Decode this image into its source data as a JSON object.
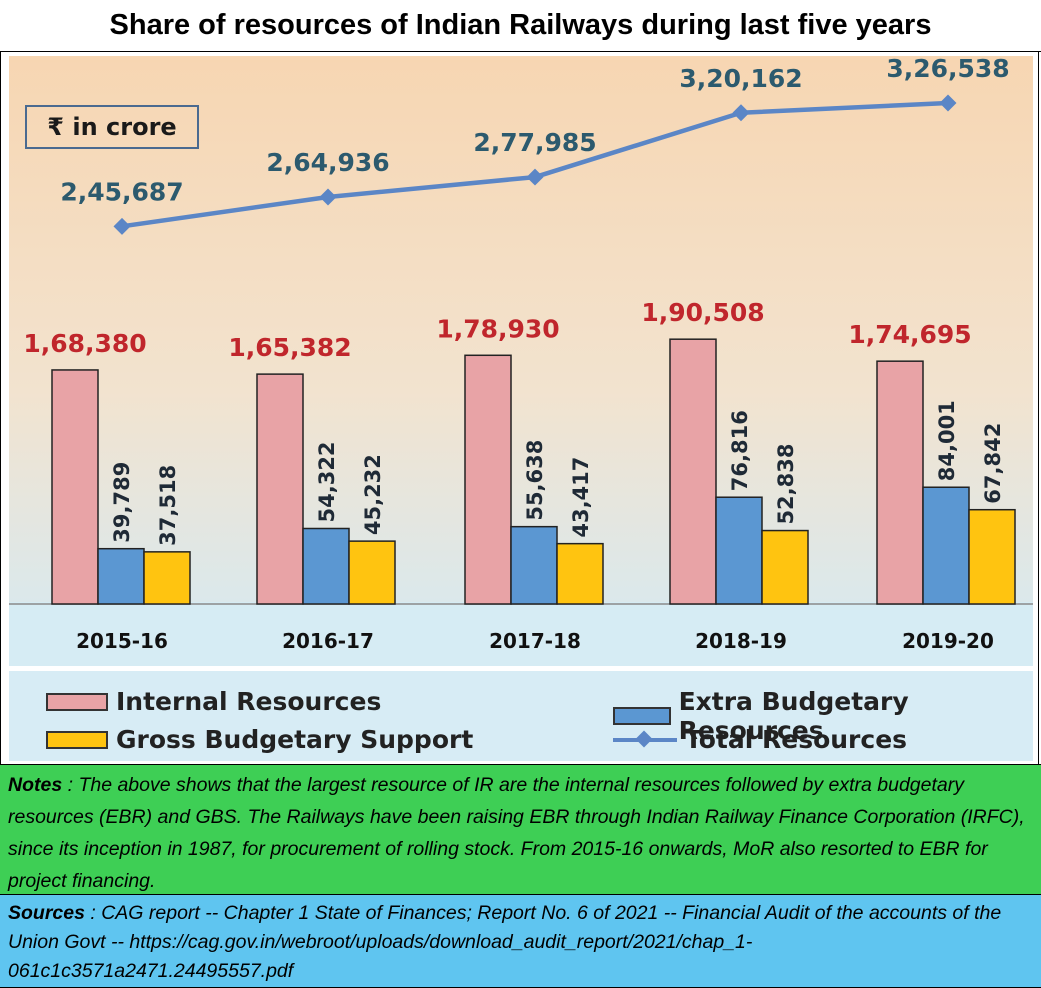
{
  "title": "Share of  resources of Indian Railways during last five years",
  "unit_label": "₹ in crore",
  "chart_data": {
    "type": "bar",
    "title": "Share of  resources of Indian Railways during last five years",
    "categories": [
      "2015-16",
      "2016-17",
      "2017-18",
      "2018-19",
      "2019-20"
    ],
    "series": [
      {
        "name": "Internal Resources",
        "type": "bar",
        "color": "#e8a3a6",
        "values": [
          168380,
          165382,
          178930,
          190508,
          174695
        ],
        "labels": [
          "1,68,380",
          "1,65,382",
          "1,78,930",
          "1,90,508",
          "1,74,695"
        ]
      },
      {
        "name": "Extra Budgetary Resources",
        "type": "bar",
        "color": "#5b97d2",
        "values": [
          39789,
          54322,
          55638,
          76816,
          84001
        ],
        "labels": [
          "39,789",
          "54,322",
          "55,638",
          "76,816",
          "84,001"
        ]
      },
      {
        "name": "Gross Budgetary Support",
        "type": "bar",
        "color": "#ffc410",
        "values": [
          37518,
          45232,
          43417,
          52838,
          67842
        ],
        "labels": [
          "37,518",
          "45,232",
          "43,417",
          "52,838",
          "67,842"
        ]
      },
      {
        "name": "Total Resources",
        "type": "line",
        "color": "#5b86c6",
        "values": [
          245687,
          264936,
          277985,
          320162,
          326538
        ],
        "labels": [
          "2,45,687",
          "2,64,936",
          "2,77,985",
          "3,20,162",
          "3,26,538"
        ]
      }
    ],
    "legend_position": "bottom",
    "grid": false
  },
  "legend": {
    "ir": "Internal Resources",
    "ebr": "Extra Budgetary Resources",
    "gbs": "Gross Budgetary Support",
    "total": "Total Resources"
  },
  "notes": {
    "label": "Notes",
    "text": " : The above shows that the largest resource of IR are the internal resources followed by extra budgetary resources (EBR) and GBS. The Railways have been raising EBR  through Indian Railway Finance Corporation (IRFC), since its inception in 1987, for procurement of rolling stock. From 2015-16 onwards, MoR also resorted to EBR for project financing."
  },
  "sources": {
    "label": "Sources",
    "text": " : CAG report -- Chapter 1 State of Finances; Report No. 6 of 2021 -- Financial Audit of the accounts of the Union Govt -- https://cag.gov.in/webroot/uploads/download_audit_report/2021/chap_1-061c1c3571a2471.24495557.pdf"
  }
}
